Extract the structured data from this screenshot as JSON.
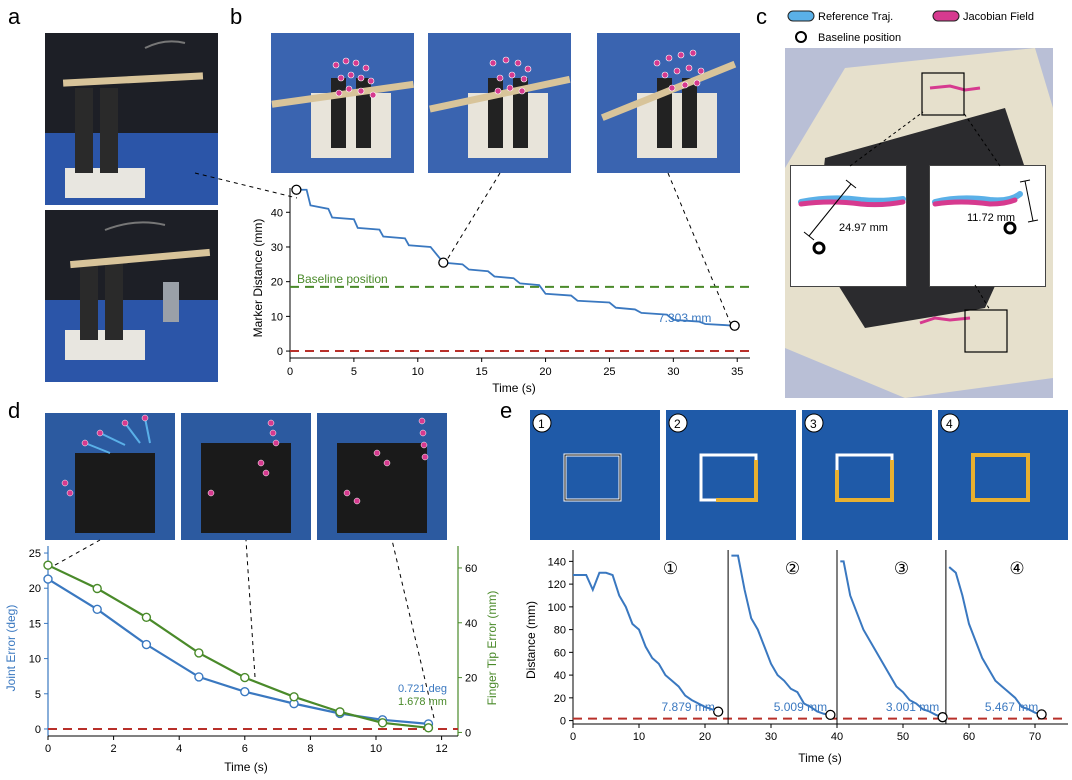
{
  "panels": {
    "a": {
      "letter": "a"
    },
    "b": {
      "letter": "b"
    },
    "c": {
      "letter": "c"
    },
    "d": {
      "letter": "d"
    },
    "e": {
      "letter": "e"
    }
  },
  "colors": {
    "blue": "#3a78c0",
    "green": "#4a8a2a",
    "red_dashed": "#b8302a",
    "magenta": "#d63a8f",
    "light_blue": "#5ab0e8",
    "photo_blue": "#2c5aa8",
    "photo_dark": "#1a1a1a"
  },
  "panel_b": {
    "annotation_label": "7.303 mm",
    "baseline_label": "Baseline position",
    "chart_data": {
      "type": "line",
      "xlabel": "Time (s)",
      "ylabel": "Marker Distance (mm)",
      "xlim": [
        0,
        36
      ],
      "ylim": [
        -2,
        47
      ],
      "xticks": [
        "0",
        "5",
        "10",
        "15",
        "20",
        "25",
        "30",
        "35"
      ],
      "yticks": [
        "0",
        "10",
        "20",
        "30",
        "40"
      ],
      "baseline": 18.5,
      "zero_line": 0,
      "series": [
        {
          "x": [
            0.5,
            1.3,
            1.6,
            3.0,
            3.3,
            5.0,
            5.3,
            7.0,
            7.3,
            9.0,
            9.3,
            11.0,
            12.0,
            13.5,
            14.0,
            15.5,
            16.0,
            17.5,
            18.0,
            19.5,
            20.0,
            22.0,
            22.5,
            25.0,
            25.5,
            27.0,
            27.5,
            29.5,
            30.0,
            32.0,
            32.5,
            34.0,
            34.8
          ],
          "y": [
            46.5,
            46.5,
            42,
            41,
            38.5,
            38,
            35.5,
            35,
            33,
            32.5,
            30.5,
            30,
            25.5,
            25,
            23.5,
            23,
            21.5,
            21,
            19.5,
            19,
            16.5,
            16,
            14.5,
            14,
            12.5,
            12,
            11,
            10.5,
            9,
            8.5,
            7.8,
            7.5,
            7.303
          ]
        }
      ],
      "markers": [
        {
          "x": 0.5,
          "y": 46.5
        },
        {
          "x": 12.0,
          "y": 25.5
        },
        {
          "x": 34.8,
          "y": 7.303
        }
      ]
    }
  },
  "panel_c": {
    "legend": {
      "reference": "Reference Traj.",
      "jacobian": "Jacobian Field",
      "baseline": "Baseline position"
    },
    "inset_left_label": "24.97 mm",
    "inset_right_label": "11.72 mm"
  },
  "panel_d": {
    "annotation_deg": "0.721 deg",
    "annotation_mm": "1.678 mm",
    "chart_data": {
      "type": "line",
      "xlabel": "Time (s)",
      "ylabel": "Joint Error (deg)",
      "ylabel_right": "Finger Tip Error (mm)",
      "xlim": [
        0,
        12.5
      ],
      "ylim": [
        -1,
        26
      ],
      "ylim_right": [
        -1.3,
        68
      ],
      "xticks": [
        "0",
        "2",
        "4",
        "6",
        "8",
        "10",
        "12"
      ],
      "yticks": [
        "0",
        "5",
        "10",
        "15",
        "20",
        "25"
      ],
      "yticks_right": [
        "0",
        "20",
        "40",
        "60"
      ],
      "series": [
        {
          "axis": "left",
          "x": [
            0,
            1.5,
            3.0,
            4.6,
            6.0,
            7.5,
            8.9,
            10.2,
            11.6
          ],
          "y": [
            21.3,
            17.0,
            12.0,
            7.4,
            5.3,
            3.6,
            2.2,
            1.3,
            0.721
          ]
        },
        {
          "axis": "right",
          "x": [
            0,
            1.5,
            3.0,
            4.6,
            6.0,
            7.5,
            8.9,
            10.2,
            11.6
          ],
          "y": [
            61,
            52.5,
            42,
            29,
            20,
            13,
            7.5,
            3.5,
            1.678
          ]
        }
      ]
    }
  },
  "panel_e": {
    "step_labels": [
      "1",
      "2",
      "3",
      "4"
    ],
    "segment_labels": [
      "①",
      "②",
      "③",
      "④"
    ],
    "end_labels": [
      "7.879 mm",
      "5.009 mm",
      "3.001 mm",
      "5.467 mm"
    ],
    "chart_data": {
      "type": "line",
      "xlabel": "Time (s)",
      "ylabel": "Distance (mm)",
      "xlim": [
        0,
        75
      ],
      "ylim": [
        -3,
        150
      ],
      "xticks": [
        "0",
        "10",
        "20",
        "30",
        "40",
        "50",
        "60",
        "70"
      ],
      "yticks": [
        "0",
        "20",
        "40",
        "60",
        "80",
        "100",
        "120",
        "140"
      ],
      "dividers": [
        23.5,
        40,
        56.5
      ],
      "segments": [
        {
          "x": [
            0,
            2,
            3,
            4,
            5,
            6,
            7,
            8,
            9,
            10,
            11,
            12,
            13,
            14,
            15,
            16,
            17,
            18,
            19,
            20,
            21,
            22.0
          ],
          "y": [
            128,
            128,
            115,
            130,
            130,
            128,
            110,
            100,
            85,
            80,
            65,
            55,
            50,
            40,
            35,
            30,
            22,
            18,
            15,
            12,
            10,
            7.879
          ]
        },
        {
          "x": [
            24,
            25,
            26,
            27,
            28,
            29,
            30,
            31,
            32,
            33,
            34,
            35,
            36,
            37,
            38,
            39.0
          ],
          "y": [
            145,
            145,
            115,
            90,
            80,
            65,
            50,
            40,
            35,
            28,
            25,
            15,
            12,
            8,
            6,
            5.009
          ]
        },
        {
          "x": [
            40.5,
            41,
            42,
            43,
            44,
            45,
            46,
            47,
            48,
            49,
            50,
            51,
            52,
            53,
            54,
            55,
            56.0
          ],
          "y": [
            140,
            140,
            110,
            95,
            80,
            70,
            60,
            50,
            40,
            30,
            25,
            18,
            15,
            10,
            8,
            5,
            3.001
          ]
        },
        {
          "x": [
            57,
            58,
            59,
            60,
            61,
            62,
            63,
            64,
            65,
            66,
            67,
            68,
            69,
            70,
            71.0
          ],
          "y": [
            135,
            130,
            110,
            85,
            70,
            55,
            45,
            35,
            30,
            25,
            20,
            12,
            10,
            7,
            5.467
          ]
        }
      ]
    }
  }
}
